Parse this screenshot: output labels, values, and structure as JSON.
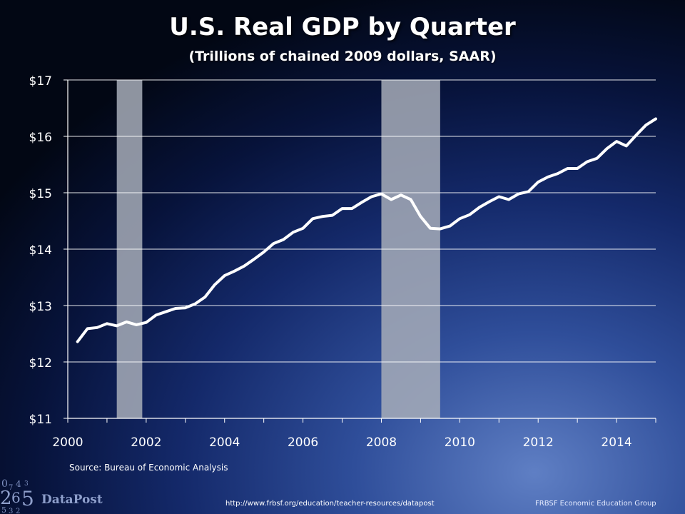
{
  "chart_data": {
    "type": "line",
    "title": "U.S. Real GDP by Quarter",
    "subtitle": "(Trillions of chained 2009 dollars, SAAR)",
    "ylim": [
      11,
      17
    ],
    "xlim": [
      2000,
      2015
    ],
    "y_ticks": [
      11,
      12,
      13,
      14,
      15,
      16,
      17
    ],
    "y_tick_labels": [
      "$11",
      "$12",
      "$13",
      "$14",
      "$15",
      "$16",
      "$17"
    ],
    "x_ticks": [
      2000,
      2002,
      2004,
      2006,
      2008,
      2010,
      2012,
      2014
    ],
    "x_tick_labels": [
      "2000",
      "2002",
      "2004",
      "2006",
      "2008",
      "2010",
      "2012",
      "2014"
    ],
    "grid": "horizontal",
    "line_color": "#ffffff",
    "shading_color": "#a7adb9",
    "recessions": [
      {
        "start": 2001.25,
        "end": 2001.9
      },
      {
        "start": 2008.0,
        "end": 2009.5
      }
    ],
    "series": [
      {
        "x": [
          2000.25,
          2000.5,
          2000.75,
          2001.0,
          2001.25,
          2001.5,
          2001.75,
          2002.0,
          2002.25,
          2002.5,
          2002.75,
          2003.0,
          2003.25,
          2003.5,
          2003.75,
          2004.0,
          2004.25,
          2004.5,
          2004.75,
          2005.0,
          2005.25,
          2005.5,
          2005.75,
          2006.0,
          2006.25,
          2006.5,
          2006.75,
          2007.0,
          2007.25,
          2007.5,
          2007.75,
          2008.0,
          2008.25,
          2008.5,
          2008.75,
          2009.0,
          2009.25,
          2009.5,
          2009.75,
          2010.0,
          2010.25,
          2010.5,
          2010.75,
          2011.0,
          2011.25,
          2011.5,
          2011.75,
          2012.0,
          2012.25,
          2012.5,
          2012.75,
          2013.0,
          2013.25,
          2013.5,
          2013.75,
          2014.0,
          2014.25,
          2014.5,
          2014.75,
          2015.0
        ],
        "values": [
          12.36,
          12.59,
          12.61,
          12.68,
          12.64,
          12.71,
          12.66,
          12.7,
          12.83,
          12.89,
          12.95,
          12.96,
          13.03,
          13.15,
          13.37,
          13.53,
          13.61,
          13.7,
          13.82,
          13.95,
          14.1,
          14.17,
          14.3,
          14.37,
          14.54,
          14.58,
          14.6,
          14.72,
          14.72,
          14.83,
          14.93,
          14.98,
          14.88,
          14.96,
          14.88,
          14.58,
          14.37,
          14.36,
          14.41,
          14.54,
          14.61,
          14.74,
          14.84,
          14.93,
          14.88,
          14.98,
          15.02,
          15.19,
          15.28,
          15.34,
          15.43,
          15.43,
          15.55,
          15.61,
          15.78,
          15.91,
          15.83,
          16.02,
          16.2,
          16.31
        ]
      }
    ]
  },
  "footer": {
    "source": "Source: Bureau of Economic Analysis",
    "url": "http://www.frbsf.org/education/teacher-resources/datapost",
    "group": "FRBSF Economic Education Group",
    "logo_text": "DataPost"
  }
}
